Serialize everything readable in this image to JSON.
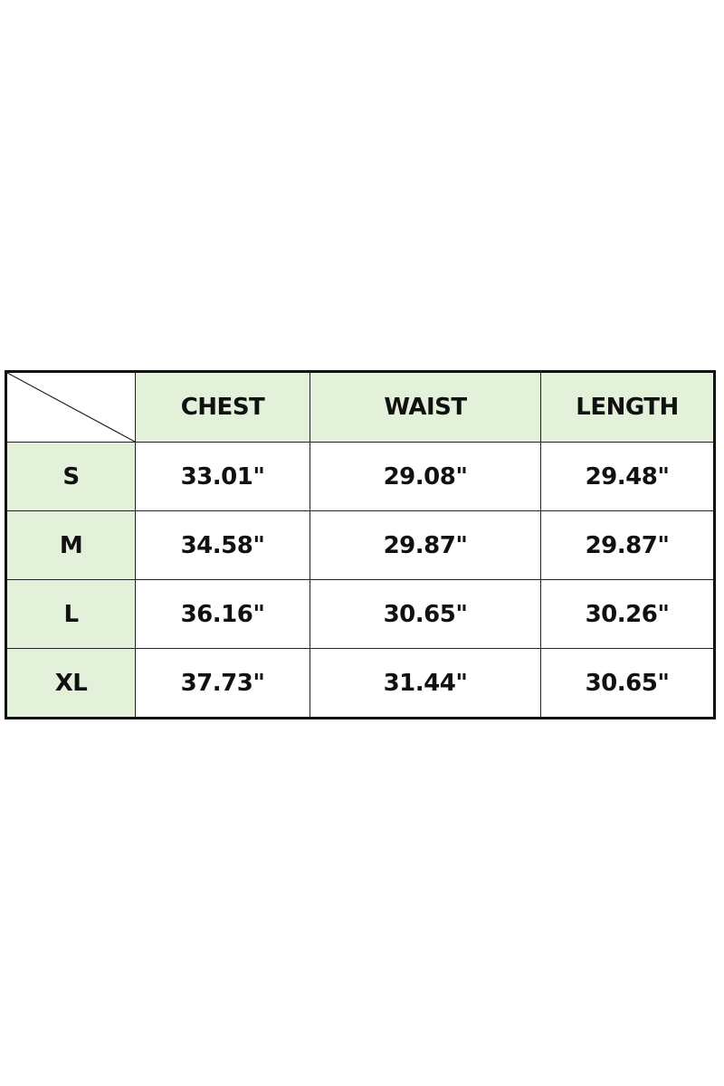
{
  "colors": {
    "header_fill": "#e3f0da",
    "border": "#111111"
  },
  "table": {
    "corner": "diagonal-split",
    "headers": [
      "CHEST",
      "WAIST",
      "LENGTH"
    ],
    "rows": [
      {
        "size": "S",
        "values": [
          "33.01\"",
          "29.08\"",
          "29.48\""
        ]
      },
      {
        "size": "M",
        "values": [
          "34.58\"",
          "29.87\"",
          "29.87\""
        ]
      },
      {
        "size": "L",
        "values": [
          "36.16\"",
          "30.65\"",
          "30.26\""
        ]
      },
      {
        "size": "XL",
        "values": [
          "37.73\"",
          "31.44\"",
          "30.65\""
        ]
      }
    ]
  }
}
